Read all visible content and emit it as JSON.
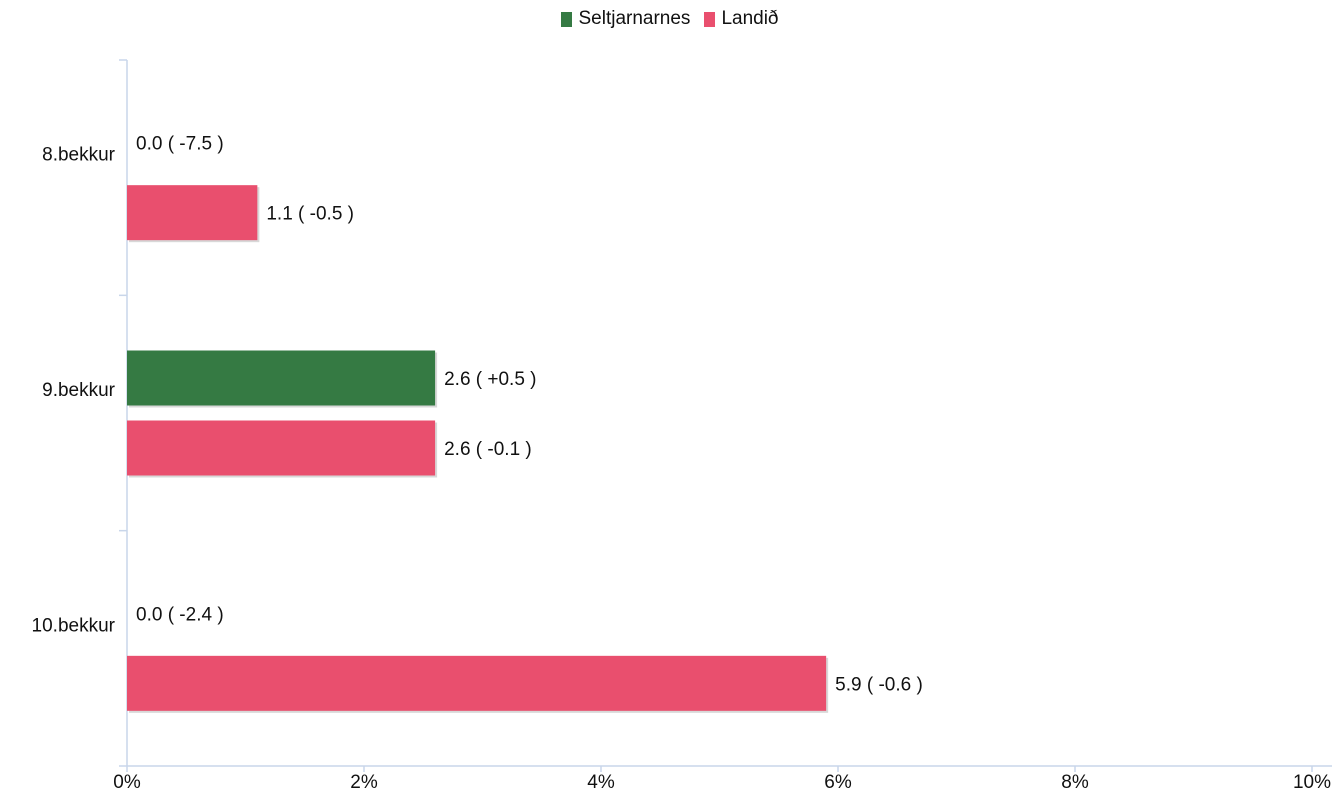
{
  "chart_data": {
    "type": "bar",
    "orientation": "horizontal",
    "categories": [
      "8.bekkur",
      "9.bekkur",
      "10.bekkur"
    ],
    "series": [
      {
        "name": "Seltjarnarnes",
        "color": "#357a43",
        "values": [
          0.0,
          2.6,
          0.0
        ],
        "labels": [
          "0.0 ( -7.5 )",
          "2.6 ( +0.5 )",
          "0.0 ( -2.4 )"
        ]
      },
      {
        "name": "Landið",
        "color": "#e94f6e",
        "values": [
          1.1,
          2.6,
          5.9
        ],
        "labels": [
          "1.1 ( -0.5 )",
          "2.6 ( -0.1 )",
          "5.9 ( -0.6 )"
        ]
      }
    ],
    "xlim": [
      0,
      10
    ],
    "xticks": [
      "0%",
      "2%",
      "4%",
      "6%",
      "8%",
      "10%"
    ],
    "legend_position": "top",
    "grid": false
  }
}
